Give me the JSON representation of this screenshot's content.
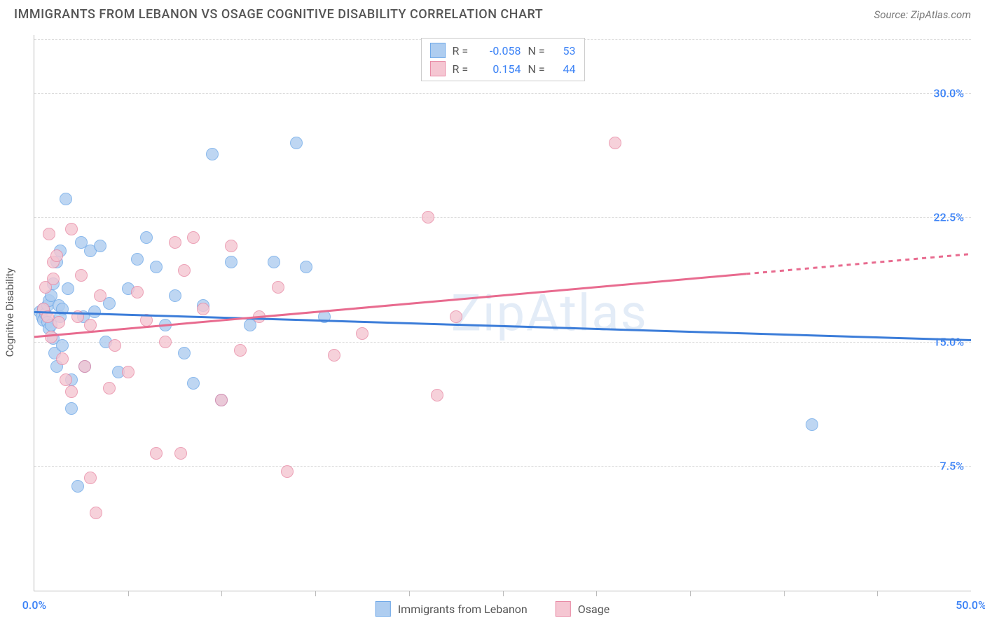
{
  "header": {
    "title": "IMMIGRANTS FROM LEBANON VS OSAGE COGNITIVE DISABILITY CORRELATION CHART",
    "source_prefix": "Source: ",
    "source_name": "ZipAtlas.com"
  },
  "chart": {
    "type": "scatter",
    "ylabel": "Cognitive Disability",
    "watermark": "ZipAtlas",
    "background_color": "#ffffff",
    "grid_color": "#dcdcdc",
    "axis_color": "#bbbbbb",
    "xlim": [
      0,
      50
    ],
    "ylim": [
      0,
      33.5
    ],
    "yticks": [
      {
        "v": 7.5,
        "label": "7.5%"
      },
      {
        "v": 15.0,
        "label": "15.0%"
      },
      {
        "v": 22.5,
        "label": "22.5%"
      },
      {
        "v": 30.0,
        "label": "30.0%"
      }
    ],
    "ytick_color": "#3b82f6",
    "ytick_fontsize": 16,
    "xtick_positions": [
      5,
      10,
      15,
      20,
      25,
      30,
      35,
      40,
      45
    ],
    "xtick_labels": [
      {
        "v": 0,
        "label": "0.0%"
      },
      {
        "v": 50,
        "label": "50.0%"
      }
    ],
    "marker_radius": 9,
    "marker_opacity": 0.8,
    "series": [
      {
        "name": "Immigrants from Lebanon",
        "fill_color": "#aecdf0",
        "stroke_color": "#6ea8e8",
        "trend": {
          "y_at_x0": 16.8,
          "y_at_x50": 15.1,
          "solid_until_x": 50,
          "line_width": 3,
          "line_color": "#3c7dd9"
        },
        "R": "-0.058",
        "N": "53",
        "points": [
          [
            0.3,
            16.8
          ],
          [
            0.4,
            16.5
          ],
          [
            0.5,
            16.3
          ],
          [
            0.5,
            17.0
          ],
          [
            0.6,
            16.7
          ],
          [
            0.7,
            17.2
          ],
          [
            0.7,
            16.2
          ],
          [
            0.8,
            15.8
          ],
          [
            0.8,
            17.5
          ],
          [
            0.9,
            16.0
          ],
          [
            0.9,
            17.8
          ],
          [
            1.0,
            15.2
          ],
          [
            1.0,
            18.5
          ],
          [
            1.1,
            14.3
          ],
          [
            1.2,
            13.5
          ],
          [
            1.2,
            19.8
          ],
          [
            1.3,
            17.2
          ],
          [
            1.4,
            16.5
          ],
          [
            1.4,
            20.5
          ],
          [
            1.5,
            14.8
          ],
          [
            1.5,
            17.0
          ],
          [
            1.7,
            23.6
          ],
          [
            1.8,
            18.2
          ],
          [
            2.0,
            11.0
          ],
          [
            2.0,
            12.7
          ],
          [
            2.3,
            6.3
          ],
          [
            2.5,
            21.0
          ],
          [
            2.6,
            16.5
          ],
          [
            2.7,
            13.5
          ],
          [
            3.0,
            20.5
          ],
          [
            3.2,
            16.8
          ],
          [
            3.5,
            20.8
          ],
          [
            3.8,
            15.0
          ],
          [
            4.0,
            17.3
          ],
          [
            4.5,
            13.2
          ],
          [
            5.0,
            18.2
          ],
          [
            5.5,
            20.0
          ],
          [
            6.0,
            21.3
          ],
          [
            6.5,
            19.5
          ],
          [
            7.0,
            16.0
          ],
          [
            7.5,
            17.8
          ],
          [
            8.0,
            14.3
          ],
          [
            8.5,
            12.5
          ],
          [
            9.0,
            17.2
          ],
          [
            9.5,
            26.3
          ],
          [
            10.0,
            11.5
          ],
          [
            10.5,
            19.8
          ],
          [
            11.5,
            16.0
          ],
          [
            12.8,
            19.8
          ],
          [
            14.0,
            27.0
          ],
          [
            14.5,
            19.5
          ],
          [
            15.5,
            16.5
          ],
          [
            41.5,
            10.0
          ]
        ]
      },
      {
        "name": "Osage",
        "fill_color": "#f5c6d2",
        "stroke_color": "#e88aa5",
        "trend": {
          "y_at_x0": 15.3,
          "y_at_x50": 20.3,
          "solid_until_x": 38,
          "line_width": 3,
          "line_color": "#e86b8f"
        },
        "R": "0.154",
        "N": "44",
        "points": [
          [
            0.5,
            17.0
          ],
          [
            0.6,
            18.3
          ],
          [
            0.7,
            16.5
          ],
          [
            0.8,
            21.5
          ],
          [
            0.9,
            15.3
          ],
          [
            1.0,
            19.8
          ],
          [
            1.0,
            18.8
          ],
          [
            1.2,
            20.2
          ],
          [
            1.3,
            16.2
          ],
          [
            1.5,
            14.0
          ],
          [
            1.7,
            12.7
          ],
          [
            2.0,
            21.8
          ],
          [
            2.0,
            12.0
          ],
          [
            2.3,
            16.5
          ],
          [
            2.5,
            19.0
          ],
          [
            2.7,
            13.5
          ],
          [
            3.0,
            6.8
          ],
          [
            3.0,
            16.0
          ],
          [
            3.3,
            4.7
          ],
          [
            3.5,
            17.8
          ],
          [
            4.0,
            12.2
          ],
          [
            4.3,
            14.8
          ],
          [
            5.0,
            13.2
          ],
          [
            5.5,
            18.0
          ],
          [
            6.0,
            16.3
          ],
          [
            6.5,
            8.3
          ],
          [
            7.0,
            15.0
          ],
          [
            7.5,
            21.0
          ],
          [
            7.8,
            8.3
          ],
          [
            8.0,
            19.3
          ],
          [
            8.5,
            21.3
          ],
          [
            9.0,
            17.0
          ],
          [
            10.0,
            11.5
          ],
          [
            10.5,
            20.8
          ],
          [
            11.0,
            14.5
          ],
          [
            12.0,
            16.5
          ],
          [
            13.0,
            18.3
          ],
          [
            13.5,
            7.2
          ],
          [
            16.0,
            14.2
          ],
          [
            17.5,
            15.5
          ],
          [
            21.0,
            22.5
          ],
          [
            21.5,
            11.8
          ],
          [
            22.5,
            16.5
          ],
          [
            31.0,
            27.0
          ]
        ]
      }
    ],
    "legend_top": {
      "border_color": "#cccccc",
      "r_label": "R =",
      "n_label": "N =",
      "value_color": "#3b82f6"
    }
  }
}
